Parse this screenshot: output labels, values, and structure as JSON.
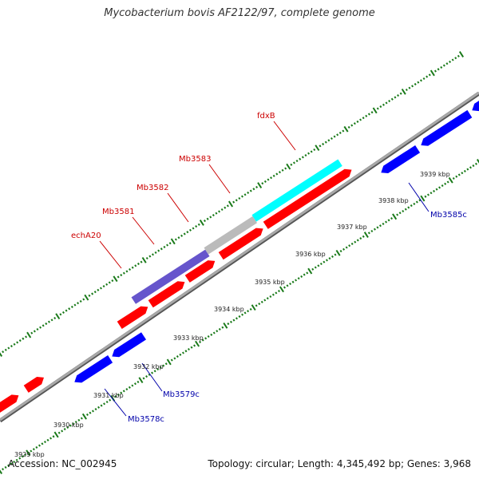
{
  "title": "Mycobacterium bovis AF2122/97, complete genome",
  "footer": {
    "accession": "Accession: NC_002945",
    "summary": "Topology: circular; Length: 4,345,492 bp; Genes: 3,968"
  },
  "colors": {
    "background": "#ffffff",
    "backbone": "#8a8a8a",
    "forward_gene": "#ff0000",
    "reverse_gene": "#0000ff",
    "tick_marks": "#1a7a1a",
    "label_forward": "#cc0000",
    "label_reverse": "#0000aa",
    "highlight_purple": "#6655cc",
    "highlight_gray": "#bbbbbb",
    "highlight_cyan": "#00ffff"
  },
  "scale_labels": [
    "3929 kbp",
    "3930 kbp",
    "3931 kbp",
    "3932 kbp",
    "3933 kbp",
    "3934 kbp",
    "3935 kbp",
    "3936 kbp",
    "3937 kbp",
    "3938 kbp",
    "3939 kbp"
  ],
  "gene_labels": [
    {
      "text": "fdxB",
      "strand": "forward"
    },
    {
      "text": "Mb3583",
      "strand": "forward"
    },
    {
      "text": "Mb3582",
      "strand": "forward"
    },
    {
      "text": "Mb3581",
      "strand": "forward"
    },
    {
      "text": "echA20",
      "strand": "forward"
    },
    {
      "text": "Mb3585c",
      "strand": "reverse"
    },
    {
      "text": "Mb3579c",
      "strand": "reverse"
    },
    {
      "text": "Mb3578c",
      "strand": "reverse"
    }
  ]
}
